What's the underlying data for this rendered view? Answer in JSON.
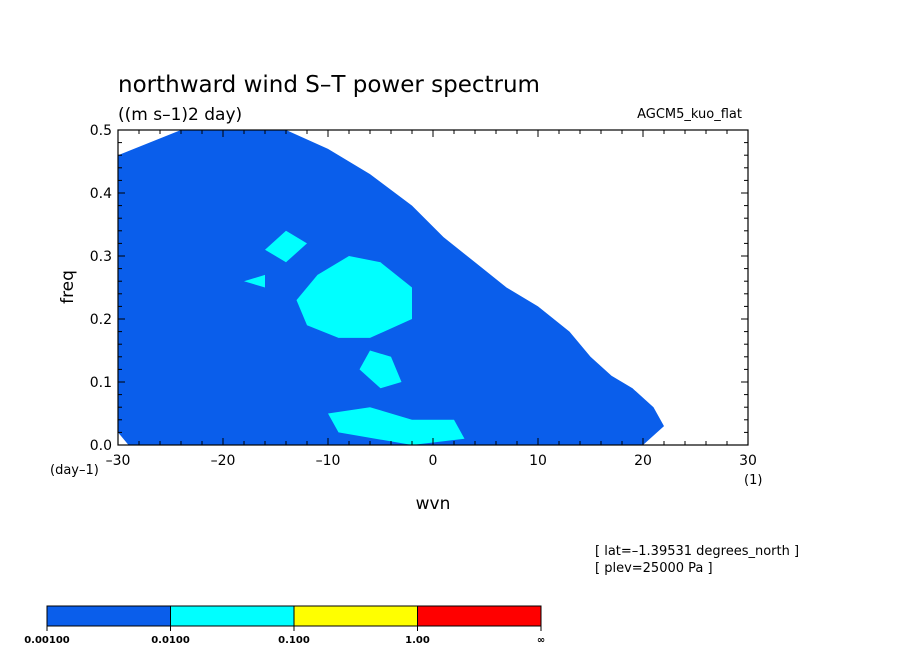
{
  "chart_data": {
    "type": "heatmap",
    "title": "northward wind S–T power spectrum",
    "subtitle": "((m s–1)2 day)",
    "model_label": "AGCM5_kuo_flat",
    "xlabel": "wvn",
    "ylabel": "freq",
    "x_unit": "(1)",
    "y_unit": "(day–1)",
    "xlim": [
      -30,
      30
    ],
    "ylim": [
      0,
      0.5
    ],
    "x_ticks": [
      "–30",
      "–20",
      "–10",
      "0",
      "10",
      "20",
      "30"
    ],
    "x_tick_values": [
      -30,
      -20,
      -10,
      0,
      10,
      20,
      30
    ],
    "y_ticks": [
      "0.0",
      "0.1",
      "0.2",
      "0.3",
      "0.4",
      "0.5"
    ],
    "y_tick_values": [
      0,
      0.1,
      0.2,
      0.3,
      0.4,
      0.5
    ],
    "annotations": [
      "[ lat=–1.39531 degrees_north ]",
      "[ plev=25000 Pa ]"
    ],
    "colorbar": {
      "colors": [
        "#0a5eeb",
        "#00ffff",
        "#ffff00",
        "#ff0000"
      ],
      "boundaries": [
        "0.00100",
        "0.0100",
        "0.100",
        "1.00",
        "∞"
      ]
    },
    "contour_levels": [
      0.001,
      0.01
    ],
    "regions": [
      {
        "level": 0.001,
        "polygon": [
          [
            -30,
            0.46
          ],
          [
            -24,
            0.5
          ],
          [
            -14,
            0.5
          ],
          [
            -10,
            0.47
          ],
          [
            -6,
            0.43
          ],
          [
            -2,
            0.38
          ],
          [
            1,
            0.33
          ],
          [
            4,
            0.29
          ],
          [
            7,
            0.25
          ],
          [
            10,
            0.22
          ],
          [
            13,
            0.18
          ],
          [
            15,
            0.14
          ],
          [
            17,
            0.11
          ],
          [
            19,
            0.09
          ],
          [
            21,
            0.06
          ],
          [
            22,
            0.03
          ],
          [
            20,
            0.0
          ],
          [
            -29,
            0.0
          ],
          [
            -30,
            0.02
          ]
        ]
      },
      {
        "level": 0.01,
        "polygon": [
          [
            -11,
            0.27
          ],
          [
            -8,
            0.3
          ],
          [
            -5,
            0.29
          ],
          [
            -2,
            0.25
          ],
          [
            -2,
            0.2
          ],
          [
            -6,
            0.17
          ],
          [
            -9,
            0.17
          ],
          [
            -12,
            0.19
          ],
          [
            -13,
            0.23
          ]
        ]
      },
      {
        "level": 0.01,
        "polygon": [
          [
            -16,
            0.31
          ],
          [
            -14,
            0.34
          ],
          [
            -12,
            0.32
          ],
          [
            -14,
            0.29
          ]
        ]
      },
      {
        "level": 0.01,
        "polygon": [
          [
            -6,
            0.15
          ],
          [
            -4,
            0.14
          ],
          [
            -3,
            0.1
          ],
          [
            -5,
            0.09
          ],
          [
            -7,
            0.12
          ]
        ]
      },
      {
        "level": 0.01,
        "polygon": [
          [
            -10,
            0.05
          ],
          [
            -6,
            0.06
          ],
          [
            -2,
            0.04
          ],
          [
            2,
            0.04
          ],
          [
            3,
            0.01
          ],
          [
            -2,
            0.0
          ],
          [
            -9,
            0.02
          ]
        ]
      },
      {
        "level": 0.01,
        "polygon": [
          [
            -18,
            0.26
          ],
          [
            -16,
            0.27
          ],
          [
            -16,
            0.25
          ]
        ]
      }
    ]
  }
}
